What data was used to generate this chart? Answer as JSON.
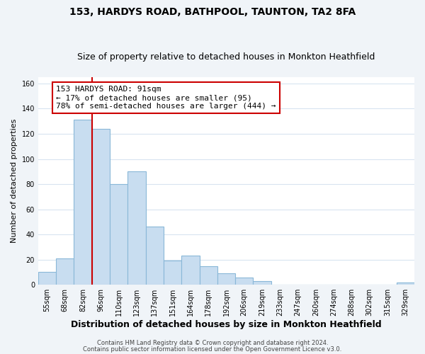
{
  "title": "153, HARDYS ROAD, BATHPOOL, TAUNTON, TA2 8FA",
  "subtitle": "Size of property relative to detached houses in Monkton Heathfield",
  "xlabel": "Distribution of detached houses by size in Monkton Heathfield",
  "ylabel": "Number of detached properties",
  "bar_labels": [
    "55sqm",
    "68sqm",
    "82sqm",
    "96sqm",
    "110sqm",
    "123sqm",
    "137sqm",
    "151sqm",
    "164sqm",
    "178sqm",
    "192sqm",
    "206sqm",
    "219sqm",
    "233sqm",
    "247sqm",
    "260sqm",
    "274sqm",
    "288sqm",
    "302sqm",
    "315sqm",
    "329sqm"
  ],
  "bar_heights": [
    10,
    21,
    131,
    124,
    80,
    90,
    46,
    19,
    23,
    15,
    9,
    6,
    3,
    0,
    0,
    0,
    0,
    0,
    0,
    0,
    2
  ],
  "bar_color": "#c8ddf0",
  "bar_edge_color": "#8ab8d8",
  "vline_color": "#cc0000",
  "annotation_text": "153 HARDYS ROAD: 91sqm\n← 17% of detached houses are smaller (95)\n78% of semi-detached houses are larger (444) →",
  "annotation_box_color": "#ffffff",
  "annotation_box_edge_color": "#cc0000",
  "ylim": [
    0,
    165
  ],
  "yticks": [
    0,
    20,
    40,
    60,
    80,
    100,
    120,
    140,
    160
  ],
  "footer1": "Contains HM Land Registry data © Crown copyright and database right 2024.",
  "footer2": "Contains public sector information licensed under the Open Government Licence v3.0.",
  "bg_color": "#f0f4f8",
  "plot_bg_color": "#ffffff",
  "grid_color": "#d8e4f0",
  "title_fontsize": 10,
  "subtitle_fontsize": 9,
  "xlabel_fontsize": 9,
  "ylabel_fontsize": 8,
  "tick_fontsize": 7,
  "annotation_fontsize": 8,
  "footer_fontsize": 6
}
